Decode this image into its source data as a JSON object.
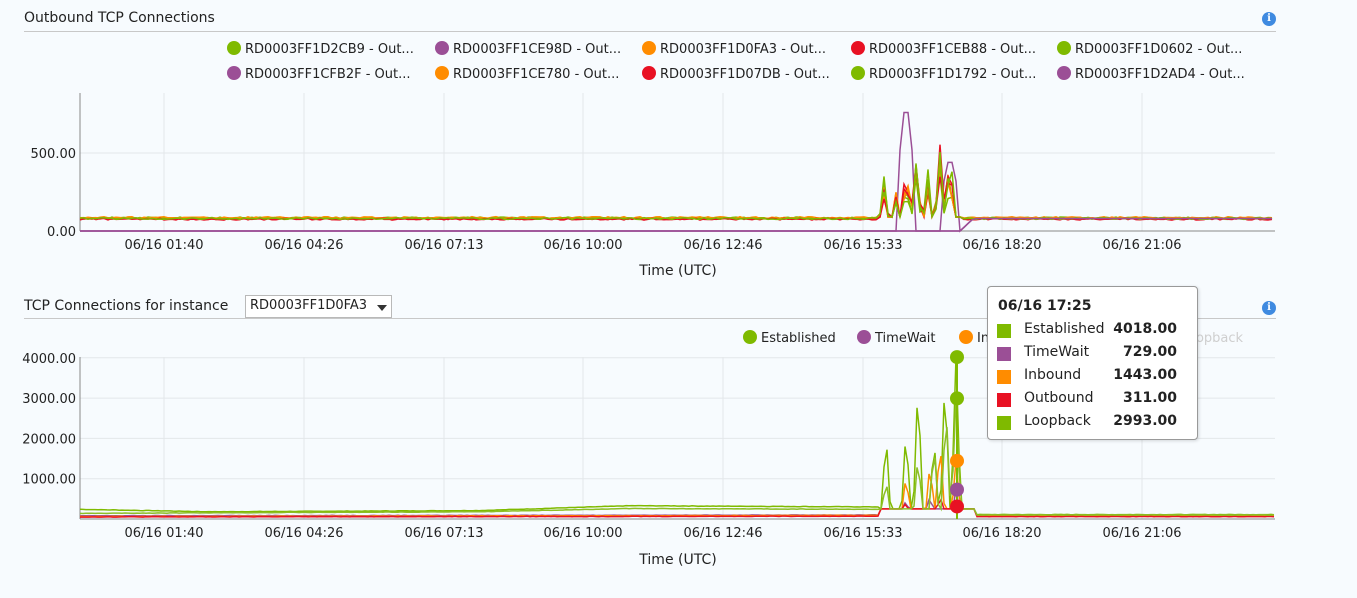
{
  "chart_data": [
    {
      "type": "line",
      "title": "Outbound TCP Connections",
      "xlabel": "Time (UTC)",
      "ylabel": "",
      "x_ticks": [
        "06/16 01:40",
        "06/16 04:26",
        "06/16 07:13",
        "06/16 10:00",
        "06/16 12:46",
        "06/16 15:33",
        "06/16 18:20",
        "06/16 21:06"
      ],
      "y_ticks": [
        "0.00",
        "500.00"
      ],
      "ylim": [
        0,
        900
      ],
      "legend_position": "top",
      "grid": true,
      "series": [
        {
          "name": "RD0003FF1D2CB9 - Out...",
          "color": "#7fba00",
          "base": 80
        },
        {
          "name": "RD0003FF1CE98D - Out...",
          "color": "#9b4f96",
          "base": 0
        },
        {
          "name": "RD0003FF1D0FA3 - Out...",
          "color": "#ff8c00",
          "base": 82
        },
        {
          "name": "RD0003FF1CEB88 - Out...",
          "color": "#e81123",
          "base": 78
        },
        {
          "name": "RD0003FF1D0602 - Out...",
          "color": "#7fba00",
          "base": 84
        },
        {
          "name": "RD0003FF1CFB2F - Out...",
          "color": "#9b4f96",
          "base": 0
        },
        {
          "name": "RD0003FF1CE780 - Out...",
          "color": "#ff8c00",
          "base": 86
        },
        {
          "name": "RD0003FF1D07DB - Out...",
          "color": "#e81123",
          "base": 76
        },
        {
          "name": "RD0003FF1D1792 - Out...",
          "color": "#7fba00",
          "base": 80
        },
        {
          "name": "RD0003FF1D2AD4 - Out...",
          "color": "#9b4f96",
          "base": 0
        }
      ]
    },
    {
      "type": "line",
      "title": "TCP Connections for instance",
      "xlabel": "Time (UTC)",
      "ylabel": "",
      "x_ticks": [
        "06/16 01:40",
        "06/16 04:26",
        "06/16 07:13",
        "06/16 10:00",
        "06/16 12:46",
        "06/16 15:33",
        "06/16 18:20",
        "06/16 21:06"
      ],
      "y_ticks": [
        "1000.00",
        "2000.00",
        "3000.00",
        "4000.00"
      ],
      "ylim": [
        0,
        4000
      ],
      "legend_position": "top-right",
      "grid": true,
      "series": [
        {
          "name": "Established",
          "color": "#7fba00",
          "legend_visible": true
        },
        {
          "name": "TimeWait",
          "color": "#9b4f96",
          "legend_visible": true
        },
        {
          "name": "Inbound",
          "color": "#ff8c00",
          "legend_visible": true
        },
        {
          "name": "Outbound",
          "color": "#f4a6ad",
          "legend_visible": false
        },
        {
          "name": "Loopback",
          "color": "#d9eab3",
          "legend_visible": false
        }
      ],
      "tooltip": {
        "time": "06/16 17:25",
        "rows": [
          {
            "name": "Established",
            "value": "4018.00",
            "color": "#7fba00"
          },
          {
            "name": "TimeWait",
            "value": "729.00",
            "color": "#9b4f96"
          },
          {
            "name": "Inbound",
            "value": "1443.00",
            "color": "#ff8c00"
          },
          {
            "name": "Outbound",
            "value": "311.00",
            "color": "#e81123"
          },
          {
            "name": "Loopback",
            "value": "2993.00",
            "color": "#7fba00"
          }
        ]
      }
    }
  ],
  "instance_select": {
    "value": "RD0003FF1D0FA3"
  },
  "info_icon": "info-icon"
}
